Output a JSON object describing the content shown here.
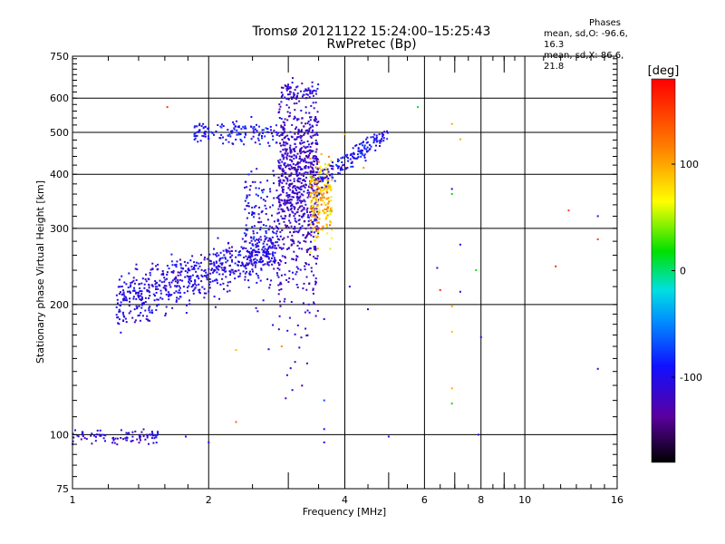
{
  "title_line1": "Tromsø 20121122 15:24:00–15:25:43",
  "title_line2": "RwPretec (Bp)",
  "phases": {
    "title": "Phases",
    "o_line": "mean, sd,O: -96.6, 16.3",
    "x_line": "mean, sd,X:  86.6, 21.8"
  },
  "colorbar": {
    "label": "[deg]",
    "range": [
      -180,
      180
    ],
    "ticks": [
      100,
      0,
      -100
    ],
    "tick_labels": [
      "100",
      "0",
      "-100"
    ]
  },
  "chart_data": {
    "type": "scatter",
    "xlabel": "Frequency [MHz]",
    "ylabel": "Stationary phase Virtual Height [km]",
    "xscale": "log",
    "yscale": "log",
    "xlim": [
      1,
      16
    ],
    "ylim": [
      75,
      750
    ],
    "x_ticks": [
      1,
      2,
      4,
      6,
      8,
      10,
      16
    ],
    "x_tick_labels": [
      "1",
      "2",
      "4",
      "6",
      "8",
      "10",
      "16"
    ],
    "y_ticks": [
      75,
      100,
      200,
      300,
      400,
      500,
      600,
      750
    ],
    "y_tick_labels": [
      "75",
      "100",
      "200",
      "300",
      "400",
      "500",
      "600",
      "750"
    ],
    "grid": true,
    "clusters": [
      {
        "x_range": [
          1.0,
          1.55
        ],
        "y_center": 99,
        "y_spread": 3,
        "phase_center": -110,
        "phase_spread": 15,
        "count": 90
      },
      {
        "x_range": [
          1.25,
          2.85
        ],
        "y_center_start": 200,
        "y_center_end": 270,
        "y_spread": 25,
        "phase_center": -105,
        "phase_spread": 12,
        "count": 650
      },
      {
        "x_range": [
          2.4,
          2.85
        ],
        "y_center": 300,
        "y_spread": 90,
        "phase_center": -100,
        "phase_spread": 15,
        "count": 160
      },
      {
        "x_range": [
          1.85,
          2.85
        ],
        "y_center": 500,
        "y_spread": 25,
        "phase_center": -95,
        "phase_spread": 15,
        "count": 140
      },
      {
        "x_range": [
          2.85,
          3.5
        ],
        "y_center": 380,
        "y_spread": 160,
        "phase_center": -115,
        "phase_spread": 12,
        "count": 850
      },
      {
        "x_range": [
          3.35,
          3.75
        ],
        "y_center": 350,
        "y_spread": 60,
        "phase_center": 95,
        "phase_spread": 20,
        "count": 220
      },
      {
        "x_range": [
          3.5,
          5.0
        ],
        "y_center_start": 380,
        "y_center_end": 500,
        "y_spread": 20,
        "phase_center": -95,
        "phase_spread": 15,
        "count": 160
      },
      {
        "x_range": [
          2.9,
          3.5
        ],
        "y_center": 620,
        "y_spread": 25,
        "phase_center": -110,
        "phase_spread": 15,
        "count": 70
      }
    ],
    "scattered_points": [
      {
        "x": 1.62,
        "y": 572,
        "phase": 150
      },
      {
        "x": 2.3,
        "y": 157,
        "phase": 90
      },
      {
        "x": 2.9,
        "y": 160,
        "phase": 110
      },
      {
        "x": 2.3,
        "y": 107,
        "phase": 130
      },
      {
        "x": 3.6,
        "y": 185,
        "phase": -100
      },
      {
        "x": 3.6,
        "y": 120,
        "phase": -70
      },
      {
        "x": 3.6,
        "y": 103,
        "phase": -90
      },
      {
        "x": 3.6,
        "y": 96,
        "phase": -90
      },
      {
        "x": 4.1,
        "y": 220,
        "phase": -120
      },
      {
        "x": 4.5,
        "y": 195,
        "phase": -110
      },
      {
        "x": 5.8,
        "y": 572,
        "phase": 10
      },
      {
        "x": 6.4,
        "y": 243,
        "phase": -110
      },
      {
        "x": 6.5,
        "y": 216,
        "phase": 160
      },
      {
        "x": 6.9,
        "y": 523,
        "phase": 100
      },
      {
        "x": 6.9,
        "y": 370,
        "phase": -120
      },
      {
        "x": 6.9,
        "y": 360,
        "phase": 20
      },
      {
        "x": 6.9,
        "y": 198,
        "phase": 100
      },
      {
        "x": 6.9,
        "y": 173,
        "phase": 90
      },
      {
        "x": 6.9,
        "y": 128,
        "phase": 100
      },
      {
        "x": 6.9,
        "y": 118,
        "phase": 20
      },
      {
        "x": 7.2,
        "y": 482,
        "phase": 100
      },
      {
        "x": 7.2,
        "y": 275,
        "phase": -100
      },
      {
        "x": 7.2,
        "y": 214,
        "phase": -100
      },
      {
        "x": 7.8,
        "y": 240,
        "phase": 20
      },
      {
        "x": 8.0,
        "y": 168,
        "phase": -100
      },
      {
        "x": 7.9,
        "y": 100,
        "phase": -120
      },
      {
        "x": 12.5,
        "y": 330,
        "phase": 150
      },
      {
        "x": 11.7,
        "y": 245,
        "phase": 160
      },
      {
        "x": 14.5,
        "y": 320,
        "phase": -110
      },
      {
        "x": 14.5,
        "y": 283,
        "phase": 150
      },
      {
        "x": 14.5,
        "y": 142,
        "phase": -120
      },
      {
        "x": 5.0,
        "y": 99,
        "phase": -110
      },
      {
        "x": 4.4,
        "y": 414,
        "phase": 110
      },
      {
        "x": 4.0,
        "y": 495,
        "phase": 100
      },
      {
        "x": 2.0,
        "y": 96,
        "phase": -100
      },
      {
        "x": 1.78,
        "y": 99,
        "phase": -90
      }
    ]
  }
}
